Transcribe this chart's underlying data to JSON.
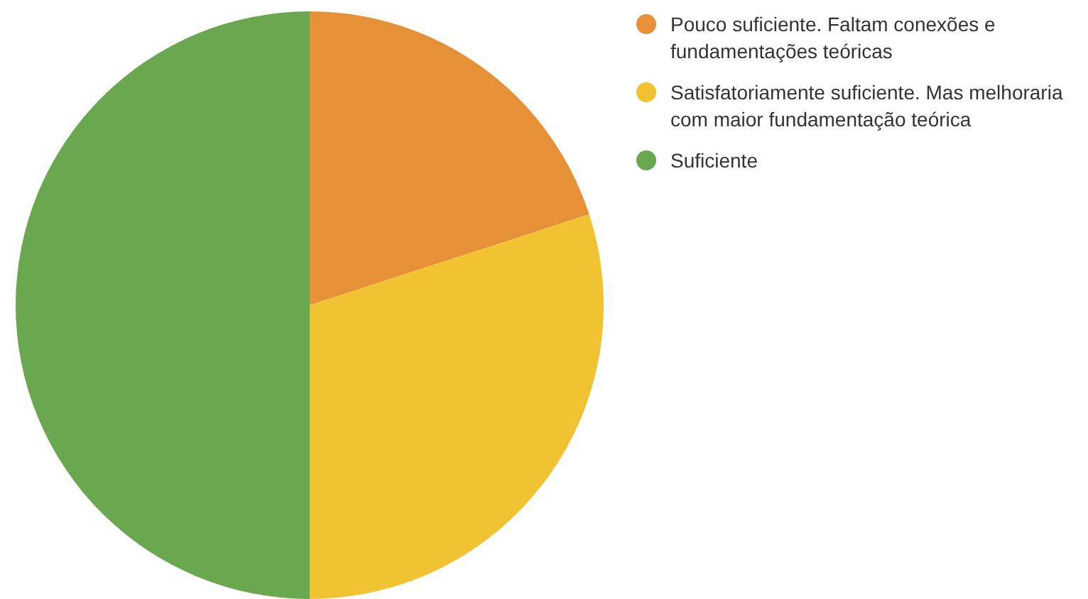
{
  "chart_data": {
    "type": "pie",
    "categories": [
      "Pouco suficiente. Faltam conexões e fundamentações teóricas",
      "Satisfatoriamente suficiente. Mas melhoraria com maior fundamentação teórica",
      "Suficiente"
    ],
    "values": [
      20,
      30,
      50
    ],
    "colors": [
      "#e69138",
      "#f1c232",
      "#6aa84f"
    ],
    "legend": "right"
  }
}
